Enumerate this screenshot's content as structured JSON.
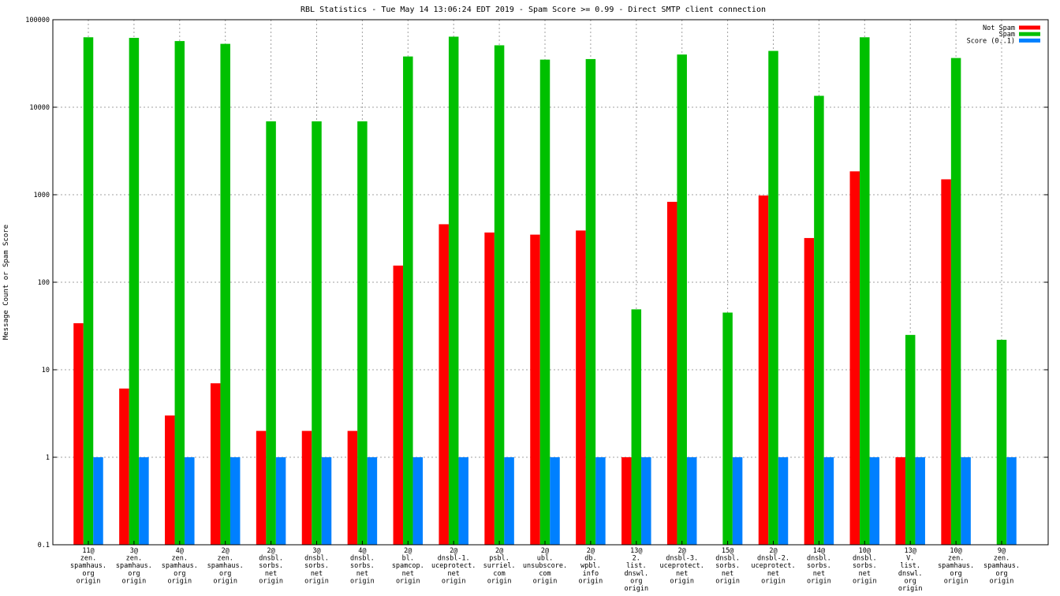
{
  "chart_data": {
    "type": "bar",
    "title": "RBL Statistics - Tue May 14 13:06:24 EDT 2019 - Spam Score >= 0.99 - Direct SMTP client connection",
    "xlabel": "",
    "ylabel": "Message Count or Spam Score",
    "yscale": "log",
    "ylim": [
      0.1,
      100000
    ],
    "yticks": [
      {
        "value": 0.1,
        "label": "0.1"
      },
      {
        "value": 1,
        "label": "1"
      },
      {
        "value": 10,
        "label": "10"
      },
      {
        "value": 100,
        "label": "100"
      },
      {
        "value": 1000,
        "label": "1000"
      },
      {
        "value": 10000,
        "label": "10000"
      },
      {
        "value": 100000,
        "label": "100000"
      }
    ],
    "grid": true,
    "legend_position": "top-right",
    "categories": [
      [
        "11@",
        "zen.",
        "spamhaus.",
        "org",
        "origin"
      ],
      [
        "3@",
        "zen.",
        "spamhaus.",
        "org",
        "origin"
      ],
      [
        "4@",
        "zen.",
        "spamhaus.",
        "org",
        "origin"
      ],
      [
        "2@",
        "zen.",
        "spamhaus.",
        "org",
        "origin"
      ],
      [
        "2@",
        "dnsbl.",
        "sorbs.",
        "net",
        "origin"
      ],
      [
        "3@",
        "dnsbl.",
        "sorbs.",
        "net",
        "origin"
      ],
      [
        "4@",
        "dnsbl.",
        "sorbs.",
        "net",
        "origin"
      ],
      [
        "2@",
        "bl.",
        "spamcop.",
        "net",
        "origin"
      ],
      [
        "2@",
        "dnsbl-1.",
        "uceprotect.",
        "net",
        "origin"
      ],
      [
        "2@",
        "psbl.",
        "surriel.",
        "com",
        "origin"
      ],
      [
        "2@",
        "ubl.",
        "unsubscore.",
        "com",
        "origin"
      ],
      [
        "2@",
        "db.",
        "wpbl.",
        "info",
        "origin"
      ],
      [
        "13@",
        "2.",
        "list.",
        "dnswl.",
        "org",
        "origin"
      ],
      [
        "2@",
        "dnsbl-3.",
        "uceprotect.",
        "net",
        "origin"
      ],
      [
        "15@",
        "dnsbl.",
        "sorbs.",
        "net",
        "origin"
      ],
      [
        "2@",
        "dnsbl-2.",
        "uceprotect.",
        "net",
        "origin"
      ],
      [
        "14@",
        "dnsbl.",
        "sorbs.",
        "net",
        "origin"
      ],
      [
        "10@",
        "dnsbl.",
        "sorbs.",
        "net",
        "origin"
      ],
      [
        "13@",
        "V.",
        "list.",
        "dnswl.",
        "org",
        "origin"
      ],
      [
        "10@",
        "zen.",
        "spamhaus.",
        "org",
        "origin"
      ],
      [
        "9@",
        "zen.",
        "spamhaus.",
        "org",
        "origin"
      ]
    ],
    "series": [
      {
        "name": "Not Spam",
        "color": "#ff0000",
        "values": [
          34,
          6.1,
          3,
          7,
          2,
          2,
          2,
          155,
          460,
          370,
          350,
          390,
          1,
          830,
          null,
          980,
          320,
          1850,
          1,
          1500,
          null
        ]
      },
      {
        "name": "Spam",
        "color": "#00c000",
        "values": [
          63000,
          62000,
          57000,
          53000,
          6900,
          6900,
          6900,
          38000,
          64000,
          51000,
          35000,
          35500,
          49,
          40000,
          45,
          44000,
          13500,
          63000,
          25,
          36500,
          22
        ]
      },
      {
        "name": "Score (0..1)",
        "color": "#0080ff",
        "values": [
          1,
          1,
          1,
          1,
          1,
          1,
          1,
          1,
          1,
          1,
          1,
          1,
          1,
          1,
          1,
          1,
          1,
          1,
          1,
          1,
          1
        ]
      }
    ]
  }
}
